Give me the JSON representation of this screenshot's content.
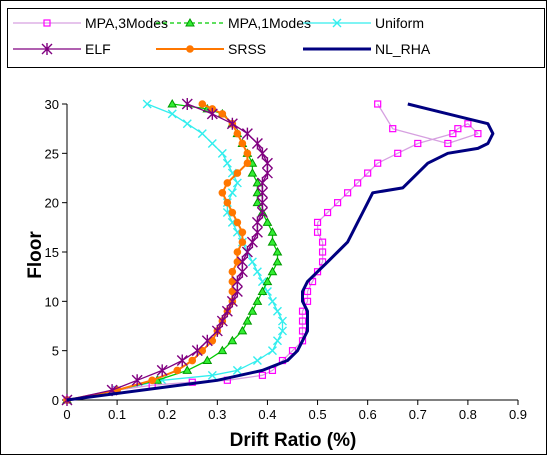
{
  "chart_data": {
    "type": "line",
    "xlabel": "Drift Ratio (%)",
    "ylabel": "Floor",
    "xlim": [
      0,
      0.9
    ],
    "ylim": [
      0,
      30
    ],
    "xticks": [
      "0",
      "0.1",
      "0.2",
      "0.3",
      "0.4",
      "0.5",
      "0.6",
      "0.7",
      "0.8",
      "0.9"
    ],
    "yticks": [
      "0",
      "5",
      "10",
      "15",
      "20",
      "25",
      "30"
    ],
    "grid": false,
    "legend_position": "top",
    "series": [
      {
        "name": "MPA,3Modes",
        "color": "#ff00ff",
        "line_color": "#d6a0e0",
        "marker": "square",
        "x": [
          0,
          0.1,
          0.17,
          0.25,
          0.32,
          0.39,
          0.41,
          0.43,
          0.45,
          0.47,
          0.47,
          0.47,
          0.47,
          0.48,
          0.48,
          0.49,
          0.5,
          0.51,
          0.51,
          0.51,
          0.5,
          0.5,
          0.52,
          0.54,
          0.56,
          0.58,
          0.6,
          0.62,
          0.66,
          0.7,
          0.77,
          0.78,
          0.8,
          0.82,
          0.76,
          0.65,
          0.62
        ],
        "y": [
          0,
          1,
          1.5,
          1.8,
          2,
          2.5,
          3,
          4,
          5,
          6,
          7,
          8,
          9,
          10,
          11,
          12,
          13,
          14,
          15,
          16,
          17,
          18,
          19,
          20,
          21,
          22,
          23,
          24,
          25,
          26,
          27,
          27.5,
          28,
          27,
          26,
          27.5,
          30
        ]
      },
      {
        "name": "MPA,1Modes",
        "color": "#00cc00",
        "line_color": "#00cc00",
        "marker": "triangle",
        "x": [
          0,
          0.1,
          0.18,
          0.24,
          0.28,
          0.31,
          0.33,
          0.35,
          0.36,
          0.37,
          0.38,
          0.39,
          0.4,
          0.41,
          0.42,
          0.42,
          0.41,
          0.41,
          0.4,
          0.39,
          0.38,
          0.38,
          0.38,
          0.37,
          0.37,
          0.36,
          0.35,
          0.34,
          0.33,
          0.31,
          0.28,
          0.21
        ],
        "y": [
          0,
          1,
          2,
          3,
          4,
          5,
          6,
          7,
          8,
          9,
          10,
          11,
          12,
          13,
          14,
          15,
          16,
          17,
          18,
          19,
          20,
          21,
          22,
          23,
          24,
          25,
          26,
          27,
          28,
          29,
          29.5,
          30
        ]
      },
      {
        "name": "Uniform",
        "color": "#33eeee",
        "line_color": "#33eeee",
        "marker": "x",
        "x": [
          0,
          0.1,
          0.19,
          0.29,
          0.34,
          0.38,
          0.41,
          0.42,
          0.43,
          0.43,
          0.42,
          0.41,
          0.4,
          0.39,
          0.38,
          0.37,
          0.36,
          0.35,
          0.34,
          0.33,
          0.32,
          0.32,
          0.33,
          0.34,
          0.33,
          0.32,
          0.31,
          0.29,
          0.27,
          0.24,
          0.21,
          0.16
        ],
        "y": [
          0,
          1,
          2,
          2.5,
          3,
          4,
          5,
          6,
          7,
          8,
          9,
          10,
          11,
          12,
          13,
          14,
          15,
          16,
          17,
          18,
          19,
          20,
          21,
          22,
          23,
          24,
          25,
          26,
          27,
          28,
          29,
          30
        ]
      },
      {
        "name": "ELF",
        "color": "#800080",
        "line_color": "#800080",
        "marker": "star",
        "x": [
          0,
          0.09,
          0.14,
          0.19,
          0.23,
          0.26,
          0.28,
          0.3,
          0.31,
          0.32,
          0.33,
          0.34,
          0.34,
          0.35,
          0.35,
          0.36,
          0.37,
          0.38,
          0.38,
          0.39,
          0.39,
          0.39,
          0.39,
          0.4,
          0.4,
          0.39,
          0.38,
          0.36,
          0.33,
          0.29,
          0.24
        ],
        "y": [
          0,
          1,
          2,
          3,
          4,
          5,
          6,
          7,
          8,
          9,
          10,
          11,
          12,
          13,
          14,
          15,
          16,
          17,
          18,
          19,
          20,
          21,
          22,
          23,
          24,
          25,
          26,
          27,
          28,
          29,
          30
        ]
      },
      {
        "name": "SRSS",
        "color": "#ff7700",
        "line_color": "#ff7700",
        "marker": "circle",
        "x": [
          0,
          0.1,
          0.17,
          0.22,
          0.25,
          0.27,
          0.29,
          0.3,
          0.31,
          0.32,
          0.33,
          0.33,
          0.33,
          0.33,
          0.34,
          0.34,
          0.35,
          0.35,
          0.34,
          0.33,
          0.32,
          0.31,
          0.32,
          0.34,
          0.36,
          0.36,
          0.35,
          0.34,
          0.33,
          0.31,
          0.29,
          0.27
        ],
        "y": [
          0,
          1,
          2,
          3,
          4,
          5,
          6,
          7,
          8,
          9,
          10,
          11,
          12,
          13,
          14,
          15,
          16,
          17,
          18,
          19,
          20,
          21,
          22,
          23,
          24,
          25,
          26,
          27,
          28,
          29,
          29.5,
          30
        ]
      },
      {
        "name": "NL_RHA",
        "color": "#000080",
        "line_color": "#000080",
        "marker": "none",
        "x": [
          0,
          0.15,
          0.3,
          0.39,
          0.44,
          0.46,
          0.47,
          0.48,
          0.48,
          0.48,
          0.47,
          0.47,
          0.48,
          0.5,
          0.52,
          0.54,
          0.56,
          0.57,
          0.58,
          0.59,
          0.6,
          0.61,
          0.67,
          0.68,
          0.7,
          0.72,
          0.76,
          0.82,
          0.84,
          0.85,
          0.84,
          0.8,
          0.72,
          0.68
        ],
        "y": [
          0,
          1,
          2,
          3,
          4,
          5,
          6,
          7,
          8,
          9,
          10,
          11,
          12,
          13,
          14,
          15,
          16,
          17,
          18,
          19,
          20,
          21,
          21.5,
          22,
          23,
          24,
          25,
          25.5,
          26,
          27,
          28,
          28.5,
          29.5,
          30
        ]
      }
    ]
  }
}
